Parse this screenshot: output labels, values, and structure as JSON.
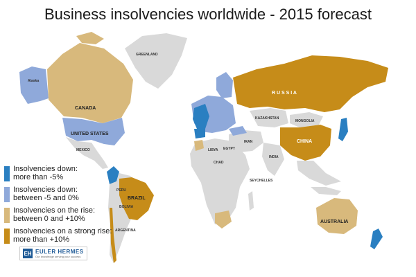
{
  "title": "Business insolvencies worldwide - 2015 forecast",
  "colors": {
    "down_strong": "#2a7fc1",
    "down": "#8fa9da",
    "rise": "#d8b97c",
    "rise_strong": "#c68c19",
    "no_data": "#d9d9d9",
    "ocean": "#ffffff"
  },
  "legend": [
    {
      "line1": "Insolvencies down:",
      "line2": "more than -5%",
      "color_key": "down_strong"
    },
    {
      "line1": "Insolvencies down:",
      "line2": "between -5 and 0%",
      "color_key": "down"
    },
    {
      "line1": "Insolvencies on the rise:",
      "line2": "between 0 and +10%",
      "color_key": "rise"
    },
    {
      "line1": "Insolvencies on a strong rise:",
      "line2": "more than +10%",
      "color_key": "rise_strong"
    }
  ],
  "labels": {
    "greenland": "GREENLAND",
    "alaska": "Alaska",
    "canada": "CANADA",
    "united_states": "UNITED STATES",
    "mexico": "MEXICO",
    "brazil": "BRAZIL",
    "russia": "R U S S I A",
    "china": "CHINA",
    "australia": "AUSTRALIA",
    "kazakhstan": "KAZAKHSTAN",
    "mongolia": "MONGOLIA",
    "india": "INDIA",
    "argentina": "ARGENTINA",
    "bolivia": "BOLIVIA",
    "peru": "PERU",
    "iran": "IRAN",
    "libya": "LIBYA",
    "egypt": "EGYPT",
    "chad": "CHAD",
    "seychelles": "SEYCHELLES"
  },
  "logo": {
    "mark": "EH",
    "name": "EULER HERMES",
    "tagline": "Our knowledge serving your success"
  }
}
